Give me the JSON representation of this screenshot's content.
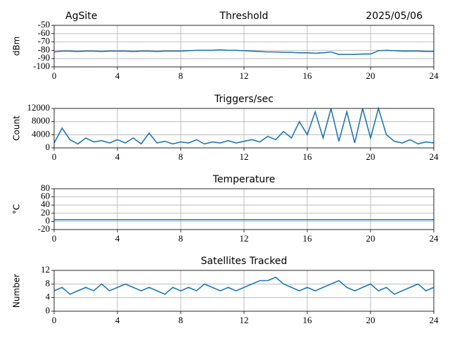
{
  "chart_data": [
    {
      "type": "line",
      "title": "Threshold",
      "left_title": "AgSite",
      "right_title": "2025/05/06",
      "ylabel": "dBm",
      "color": "#1f77b4",
      "grid": true,
      "xlim": [
        0,
        24
      ],
      "xticks": [
        0,
        4,
        8,
        12,
        16,
        20,
        24
      ],
      "ylim": [
        -100,
        -50
      ],
      "yticks": [
        -50,
        -60,
        -70,
        -80,
        -90,
        -100
      ],
      "x": [
        0,
        0.5,
        1,
        1.5,
        2,
        2.5,
        3,
        3.5,
        4,
        4.5,
        5,
        5.5,
        6,
        6.5,
        7,
        7.5,
        8,
        8.5,
        9,
        9.5,
        10,
        10.5,
        11,
        11.5,
        12,
        12.5,
        13,
        13.5,
        14,
        14.5,
        15,
        15.5,
        16,
        16.5,
        17,
        17.5,
        18,
        18.5,
        19,
        19.5,
        20,
        20.5,
        21,
        21.5,
        22,
        22.5,
        23,
        23.5,
        24
      ],
      "values": [
        -82,
        -81,
        -81,
        -81.5,
        -81,
        -81,
        -81.5,
        -81,
        -81,
        -81,
        -81.5,
        -81,
        -81,
        -81.5,
        -81,
        -81,
        -81,
        -80.5,
        -80,
        -80,
        -80,
        -79.5,
        -80,
        -80,
        -80.5,
        -81,
        -81.5,
        -82,
        -82,
        -82.5,
        -82.5,
        -83,
        -83,
        -83.5,
        -83,
        -82,
        -85,
        -85,
        -85,
        -84.5,
        -84.5,
        -80.5,
        -80,
        -80.5,
        -81,
        -81,
        -81,
        -81.5,
        -81.5
      ]
    },
    {
      "type": "line",
      "title": "Triggers/sec",
      "ylabel": "Count",
      "color": "#1f77b4",
      "grid": true,
      "xlim": [
        0,
        24
      ],
      "xticks": [
        0,
        4,
        8,
        12,
        16,
        20,
        24
      ],
      "ylim": [
        0,
        12000
      ],
      "yticks": [
        0,
        4000,
        8000,
        12000
      ],
      "x": [
        0,
        0.5,
        1,
        1.5,
        2,
        2.5,
        3,
        3.5,
        4,
        4.5,
        5,
        5.5,
        6,
        6.5,
        7,
        7.5,
        8,
        8.5,
        9,
        9.5,
        10,
        10.5,
        11,
        11.5,
        12,
        12.5,
        13,
        13.5,
        14,
        14.5,
        15,
        15.5,
        16,
        16.5,
        17,
        17.5,
        18,
        18.5,
        19,
        19.5,
        20,
        20.5,
        21,
        21.5,
        22,
        22.5,
        23,
        23.5,
        24
      ],
      "values": [
        1500,
        6000,
        2500,
        1200,
        3000,
        1800,
        2200,
        1500,
        2500,
        1500,
        3000,
        1200,
        4500,
        1500,
        2000,
        1200,
        1800,
        1500,
        2500,
        1200,
        1800,
        1500,
        2200,
        1500,
        2000,
        2500,
        1800,
        3500,
        2500,
        5000,
        3000,
        8000,
        4000,
        11000,
        3000,
        12000,
        2000,
        11000,
        1500,
        12000,
        3000,
        12000,
        4000,
        2000,
        1500,
        2500,
        1200,
        1800,
        1500
      ]
    },
    {
      "type": "line",
      "title": "Temperature",
      "ylabel": "°C",
      "color": "#1f77b4",
      "grid": true,
      "xlim": [
        0,
        24
      ],
      "xticks": [
        0,
        4,
        8,
        12,
        16,
        20,
        24
      ],
      "ylim": [
        -20,
        80
      ],
      "yticks": [
        -20,
        0,
        20,
        40,
        60,
        80
      ],
      "x": [
        0,
        0.5,
        1,
        1.5,
        2,
        2.5,
        3,
        3.5,
        4,
        4.5,
        5,
        5.5,
        6,
        6.5,
        7,
        7.5,
        8,
        8.5,
        9,
        9.5,
        10,
        10.5,
        11,
        11.5,
        12,
        12.5,
        13,
        13.5,
        14,
        14.5,
        15,
        15.5,
        16,
        16.5,
        17,
        17.5,
        18,
        18.5,
        19,
        19.5,
        20,
        20.5,
        21,
        21.5,
        22,
        22.5,
        23,
        23.5,
        24
      ],
      "values": [
        4,
        4,
        4,
        4,
        4,
        4,
        4,
        4,
        4,
        4,
        4,
        4,
        4,
        4,
        4,
        4,
        4,
        4,
        4,
        4,
        4,
        4,
        4,
        4,
        4,
        4,
        4,
        4,
        4,
        4,
        4,
        4,
        4,
        4,
        4,
        4,
        4,
        4,
        4,
        4,
        4,
        4,
        4,
        4,
        4,
        4,
        4,
        4,
        4
      ]
    },
    {
      "type": "line",
      "title": "Satellites Tracked",
      "ylabel": "Number",
      "color": "#1f77b4",
      "grid": true,
      "xlim": [
        0,
        24
      ],
      "xticks": [
        0,
        4,
        8,
        12,
        16,
        20,
        24
      ],
      "ylim": [
        0,
        12
      ],
      "yticks": [
        0,
        4,
        8,
        12
      ],
      "x": [
        0,
        0.5,
        1,
        1.5,
        2,
        2.5,
        3,
        3.5,
        4,
        4.5,
        5,
        5.5,
        6,
        6.5,
        7,
        7.5,
        8,
        8.5,
        9,
        9.5,
        10,
        10.5,
        11,
        11.5,
        12,
        12.5,
        13,
        13.5,
        14,
        14.5,
        15,
        15.5,
        16,
        16.5,
        17,
        17.5,
        18,
        18.5,
        19,
        19.5,
        20,
        20.5,
        21,
        21.5,
        22,
        22.5,
        23,
        23.5,
        24
      ],
      "values": [
        6,
        7,
        5,
        6,
        7,
        6,
        8,
        6,
        7,
        8,
        7,
        6,
        7,
        6,
        5,
        7,
        6,
        7,
        6,
        8,
        7,
        6,
        7,
        6,
        7,
        8,
        9,
        9,
        10,
        8,
        7,
        6,
        7,
        6,
        7,
        8,
        9,
        7,
        6,
        7,
        8,
        6,
        7,
        5,
        6,
        7,
        8,
        6,
        7
      ]
    }
  ]
}
